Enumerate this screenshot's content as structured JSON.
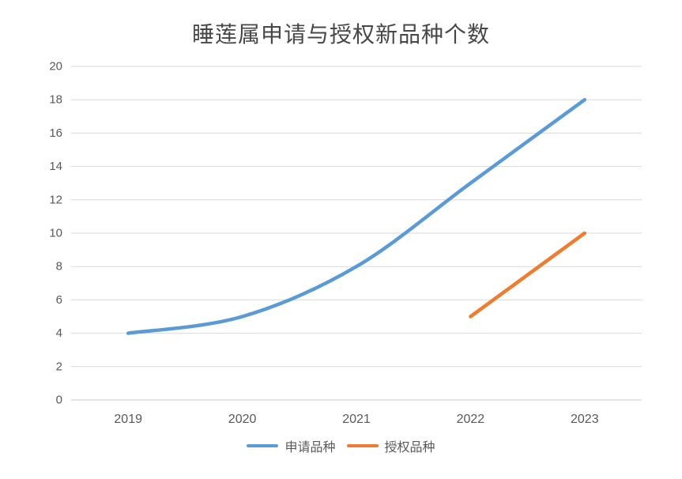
{
  "chart_data": {
    "type": "line",
    "title": "睡莲属申请与授权新品种个数",
    "categories": [
      "2019",
      "2020",
      "2021",
      "2022",
      "2023"
    ],
    "series": [
      {
        "name": "申请品种",
        "values": [
          4,
          5,
          8,
          13,
          18
        ],
        "color": "#5B9BD5",
        "smooth": true
      },
      {
        "name": "授权品种",
        "values": [
          null,
          null,
          null,
          5,
          10
        ],
        "color": "#ED7D31",
        "smooth": true
      }
    ],
    "ylim": [
      0,
      20
    ],
    "ytick_step": 2,
    "yticks": [
      0,
      2,
      4,
      6,
      8,
      10,
      12,
      14,
      16,
      18,
      20
    ],
    "grid": true,
    "legend_position": "bottom",
    "colors": {
      "gridline": "#D9D9D9",
      "baseline": "#C9C9C9",
      "axis_label": "#595959",
      "title": "#474747",
      "background": "#FFFFFF"
    }
  }
}
